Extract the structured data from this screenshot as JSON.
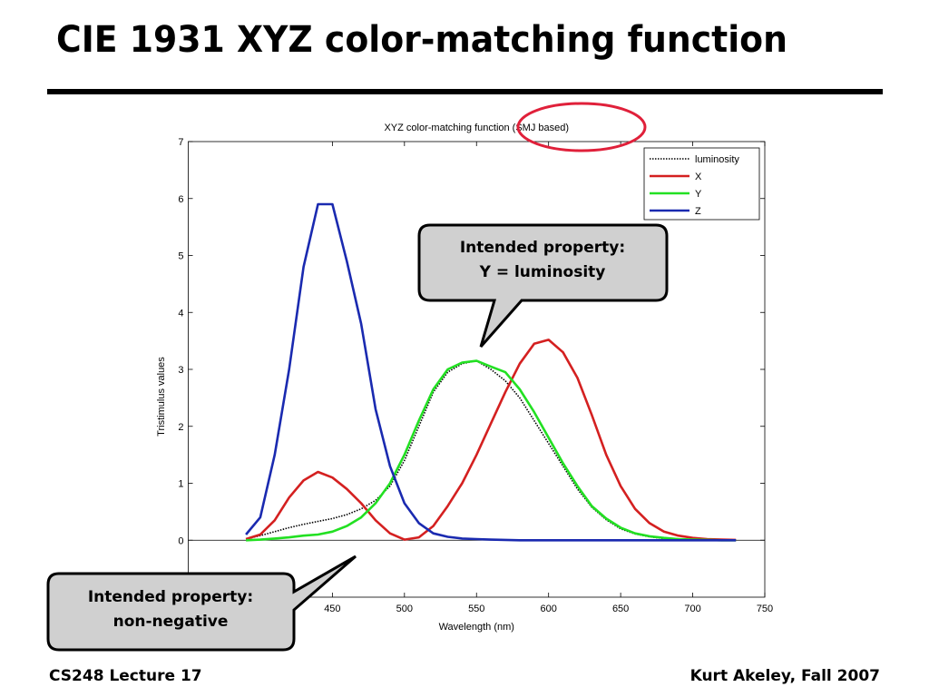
{
  "slide": {
    "title": "CIE 1931 XYZ color-matching function",
    "footer_left": "CS248 Lecture 17",
    "footer_right": "Kurt Akeley, Fall 2007",
    "callouts": [
      [
        "Intended property:",
        "Y = luminosity"
      ],
      [
        "Intended property:",
        "non-negative"
      ]
    ]
  },
  "chart_data": {
    "type": "line",
    "title": "XYZ color-matching function (SMJ based)",
    "x_label": "Wavelength (nm)",
    "y_label": "Tristimulus values",
    "x": [
      390,
      400,
      410,
      420,
      430,
      440,
      450,
      460,
      470,
      480,
      490,
      500,
      510,
      520,
      530,
      540,
      550,
      560,
      570,
      580,
      590,
      600,
      610,
      620,
      630,
      640,
      650,
      660,
      670,
      680,
      690,
      700,
      710,
      720,
      730
    ],
    "series": [
      {
        "name": "luminosity",
        "color": "#000000",
        "dash": "dotted",
        "values": [
          0.02,
          0.08,
          0.15,
          0.22,
          0.28,
          0.33,
          0.38,
          0.45,
          0.55,
          0.7,
          0.95,
          1.4,
          2.0,
          2.6,
          2.95,
          3.1,
          3.15,
          3.0,
          2.8,
          2.5,
          2.1,
          1.7,
          1.3,
          0.9,
          0.58,
          0.36,
          0.2,
          0.11,
          0.06,
          0.03,
          0.015,
          0.008,
          0.004,
          0,
          0
        ]
      },
      {
        "name": "X",
        "color": "#d42020",
        "values": [
          0.02,
          0.1,
          0.35,
          0.75,
          1.05,
          1.2,
          1.1,
          0.9,
          0.65,
          0.35,
          0.12,
          0.01,
          0.05,
          0.25,
          0.6,
          1.0,
          1.5,
          2.05,
          2.6,
          3.1,
          3.45,
          3.52,
          3.3,
          2.85,
          2.2,
          1.5,
          0.95,
          0.55,
          0.3,
          0.15,
          0.08,
          0.04,
          0.02,
          0.01,
          0.005
        ]
      },
      {
        "name": "Y",
        "color": "#22e022",
        "values": [
          0,
          0.01,
          0.03,
          0.05,
          0.08,
          0.1,
          0.15,
          0.25,
          0.4,
          0.65,
          1.0,
          1.5,
          2.1,
          2.65,
          3.0,
          3.12,
          3.15,
          3.05,
          2.95,
          2.65,
          2.25,
          1.8,
          1.35,
          0.95,
          0.6,
          0.38,
          0.22,
          0.12,
          0.07,
          0.04,
          0.02,
          0.01,
          0.005,
          0,
          0
        ]
      },
      {
        "name": "Z",
        "color": "#1a2ab0",
        "values": [
          0.1,
          0.4,
          1.5,
          3.0,
          4.8,
          5.9,
          5.9,
          4.9,
          3.8,
          2.3,
          1.3,
          0.65,
          0.3,
          0.12,
          0.06,
          0.03,
          0.02,
          0.01,
          0.005,
          0,
          0,
          0,
          0,
          0,
          0,
          0,
          0,
          0,
          0,
          0,
          0,
          0,
          0,
          0,
          0
        ]
      }
    ],
    "xlim": [
      350,
      750
    ],
    "xticks": [
      450,
      500,
      550,
      600,
      650,
      700,
      750
    ],
    "ylim": [
      -1,
      7
    ],
    "yticks": [
      0,
      1,
      2,
      3,
      4,
      5,
      6,
      7
    ],
    "legend": "upper right"
  }
}
